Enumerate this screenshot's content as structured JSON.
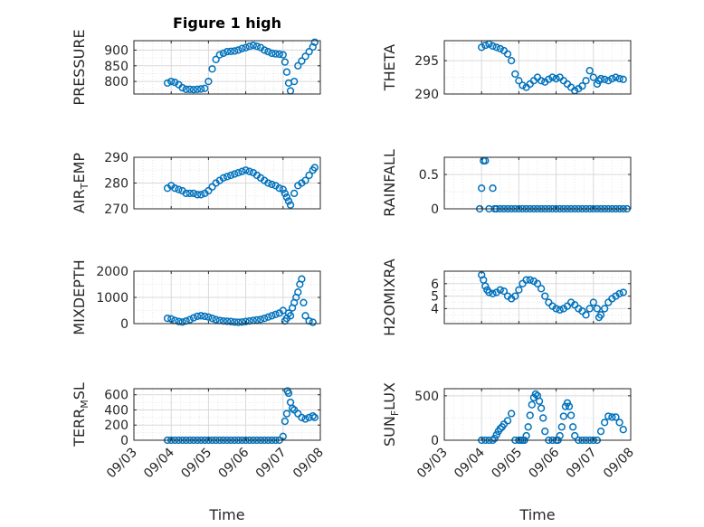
{
  "chart_data": [
    {
      "type": "scatter",
      "title": "Figure 1 high",
      "ylabel": "PRESSURE",
      "ylim": [
        760,
        930
      ],
      "yticks": [
        "800",
        "850",
        "900"
      ],
      "y_tick_values": [
        800,
        850,
        900
      ],
      "x": [
        3.9,
        4.0,
        4.1,
        4.2,
        4.3,
        4.4,
        4.5,
        4.6,
        4.7,
        4.8,
        4.9,
        5.0,
        5.1,
        5.2,
        5.3,
        5.4,
        5.5,
        5.6,
        5.7,
        5.8,
        5.9,
        6.0,
        6.1,
        6.2,
        6.3,
        6.4,
        6.5,
        6.6,
        6.7,
        6.8,
        6.9,
        7.0,
        7.05,
        7.1,
        7.15,
        7.2,
        7.3,
        7.4,
        7.5,
        7.6,
        7.7,
        7.8,
        7.85
      ],
      "values": [
        795,
        800,
        797,
        790,
        780,
        775,
        775,
        774,
        775,
        776,
        778,
        800,
        840,
        870,
        885,
        890,
        895,
        896,
        897,
        900,
        905,
        908,
        912,
        915,
        912,
        908,
        900,
        895,
        890,
        888,
        887,
        885,
        862,
        830,
        795,
        770,
        800,
        850,
        865,
        880,
        895,
        910,
        925
      ]
    },
    {
      "type": "scatter",
      "ylabel": "THETA",
      "ylim": [
        290,
        298
      ],
      "yticks": [
        "290",
        "295"
      ],
      "y_tick_values": [
        290,
        295
      ],
      "x": [
        4.0,
        4.1,
        4.2,
        4.3,
        4.4,
        4.5,
        4.6,
        4.7,
        4.8,
        4.9,
        5.0,
        5.1,
        5.2,
        5.3,
        5.4,
        5.5,
        5.6,
        5.7,
        5.8,
        5.9,
        6.0,
        6.1,
        6.2,
        6.3,
        6.4,
        6.5,
        6.6,
        6.7,
        6.8,
        6.9,
        7.0,
        7.1,
        7.15,
        7.2,
        7.3,
        7.4,
        7.5,
        7.6,
        7.7,
        7.8
      ],
      "values": [
        297.0,
        297.3,
        297.5,
        297.2,
        297.0,
        296.8,
        296.5,
        296.0,
        295.0,
        293.0,
        292.0,
        291.3,
        291.0,
        291.5,
        292.0,
        292.5,
        292.0,
        291.8,
        292.2,
        292.5,
        292.3,
        292.5,
        292.0,
        291.5,
        291.0,
        290.5,
        290.8,
        291.2,
        292.0,
        293.5,
        292.5,
        291.5,
        292.0,
        292.3,
        292.2,
        292.0,
        292.3,
        292.5,
        292.3,
        292.2
      ]
    },
    {
      "type": "scatter",
      "ylabel": "AIR_TEMP",
      "ylim": [
        270,
        290
      ],
      "yticks": [
        "270",
        "280",
        "290"
      ],
      "y_tick_values": [
        270,
        280,
        290
      ],
      "x": [
        3.9,
        4.0,
        4.1,
        4.2,
        4.3,
        4.4,
        4.5,
        4.6,
        4.7,
        4.8,
        4.9,
        5.0,
        5.1,
        5.2,
        5.3,
        5.4,
        5.5,
        5.6,
        5.7,
        5.8,
        5.9,
        6.0,
        6.1,
        6.2,
        6.3,
        6.4,
        6.5,
        6.6,
        6.7,
        6.8,
        6.9,
        7.0,
        7.05,
        7.1,
        7.15,
        7.2,
        7.3,
        7.4,
        7.5,
        7.6,
        7.7,
        7.8,
        7.85
      ],
      "values": [
        278,
        279,
        278,
        277.5,
        277,
        276,
        276,
        276,
        275.5,
        275.5,
        276,
        277,
        278.5,
        280,
        281,
        282,
        282.5,
        283,
        283.5,
        284,
        284.5,
        285,
        284.5,
        284,
        283,
        282,
        281,
        280,
        279.5,
        279,
        278,
        277.5,
        276,
        274.5,
        273,
        271.5,
        276,
        279,
        280,
        281,
        283,
        285,
        286
      ]
    },
    {
      "type": "scatter",
      "ylabel": "RAINFALL",
      "ylim": [
        0,
        0.75
      ],
      "yticks": [
        "0",
        "0.5"
      ],
      "y_tick_values": [
        0,
        0.5
      ],
      "x": [
        3.95,
        4.0,
        4.05,
        4.1,
        4.2,
        4.3,
        4.35,
        4.4,
        4.5,
        4.6,
        4.7,
        4.8,
        4.9,
        5.0,
        5.1,
        5.2,
        5.3,
        5.4,
        5.5,
        5.6,
        5.7,
        5.8,
        5.9,
        6.0,
        6.1,
        6.2,
        6.3,
        6.4,
        6.5,
        6.6,
        6.7,
        6.8,
        6.9,
        7.0,
        7.1,
        7.2,
        7.3,
        7.4,
        7.5,
        7.6,
        7.7,
        7.8,
        7.9
      ],
      "values": [
        0,
        0.3,
        0.7,
        0.7,
        0,
        0.3,
        0,
        0,
        0,
        0,
        0,
        0,
        0,
        0,
        0,
        0,
        0,
        0,
        0,
        0,
        0,
        0,
        0,
        0,
        0,
        0,
        0,
        0,
        0,
        0,
        0,
        0,
        0,
        0,
        0,
        0,
        0,
        0,
        0,
        0,
        0,
        0,
        0
      ]
    },
    {
      "type": "scatter",
      "ylabel": "MIXDEPTH",
      "ylim": [
        0,
        2000
      ],
      "yticks": [
        "0",
        "1000",
        "2000"
      ],
      "y_tick_values": [
        0,
        1000,
        2000
      ],
      "x": [
        3.9,
        4.0,
        4.1,
        4.2,
        4.3,
        4.4,
        4.5,
        4.6,
        4.7,
        4.8,
        4.9,
        5.0,
        5.1,
        5.2,
        5.3,
        5.4,
        5.5,
        5.6,
        5.7,
        5.8,
        5.9,
        6.0,
        6.1,
        6.2,
        6.3,
        6.4,
        6.5,
        6.6,
        6.7,
        6.8,
        6.9,
        7.0,
        7.05,
        7.1,
        7.15,
        7.2,
        7.25,
        7.3,
        7.35,
        7.4,
        7.45,
        7.5,
        7.55,
        7.6,
        7.7,
        7.8
      ],
      "values": [
        200,
        180,
        120,
        80,
        60,
        100,
        150,
        220,
        280,
        300,
        280,
        250,
        200,
        150,
        120,
        100,
        90,
        80,
        60,
        50,
        60,
        80,
        100,
        120,
        140,
        160,
        200,
        250,
        300,
        350,
        400,
        500,
        100,
        200,
        400,
        300,
        600,
        800,
        1000,
        1200,
        1500,
        1700,
        800,
        300,
        100,
        50
      ]
    },
    {
      "type": "scatter",
      "ylabel": "H2OMIXRA",
      "ylim": [
        2.8,
        7
      ],
      "yticks": [
        "4",
        "5",
        "6"
      ],
      "y_tick_values": [
        4,
        5,
        6
      ],
      "x": [
        4.0,
        4.05,
        4.1,
        4.15,
        4.2,
        4.3,
        4.4,
        4.5,
        4.6,
        4.7,
        4.8,
        4.9,
        5.0,
        5.1,
        5.2,
        5.3,
        5.4,
        5.5,
        5.6,
        5.7,
        5.8,
        5.9,
        6.0,
        6.1,
        6.2,
        6.3,
        6.4,
        6.5,
        6.6,
        6.7,
        6.8,
        6.9,
        7.0,
        7.1,
        7.15,
        7.2,
        7.3,
        7.4,
        7.5,
        7.6,
        7.7,
        7.8
      ],
      "values": [
        6.7,
        6.3,
        5.8,
        5.5,
        5.3,
        5.2,
        5.3,
        5.5,
        5.4,
        5.0,
        4.8,
        5.0,
        5.5,
        6.0,
        6.3,
        6.3,
        6.2,
        6.0,
        5.6,
        5.0,
        4.5,
        4.2,
        4.0,
        3.9,
        4.0,
        4.2,
        4.5,
        4.3,
        4.0,
        3.8,
        3.5,
        4.0,
        4.5,
        4.0,
        3.3,
        3.5,
        4.0,
        4.5,
        4.8,
        5.0,
        5.2,
        5.3
      ]
    },
    {
      "type": "scatter",
      "ylabel": "TERR_MSL",
      "ylim": [
        0,
        680
      ],
      "yticks": [
        "0",
        "200",
        "400",
        "600"
      ],
      "y_tick_values": [
        0,
        200,
        400,
        600
      ],
      "x": [
        3.9,
        4.0,
        4.1,
        4.2,
        4.3,
        4.4,
        4.5,
        4.6,
        4.7,
        4.8,
        4.9,
        5.0,
        5.1,
        5.2,
        5.3,
        5.4,
        5.5,
        5.6,
        5.7,
        5.8,
        5.9,
        6.0,
        6.1,
        6.2,
        6.3,
        6.4,
        6.5,
        6.6,
        6.7,
        6.8,
        6.9,
        7.0,
        7.05,
        7.1,
        7.12,
        7.15,
        7.2,
        7.25,
        7.3,
        7.4,
        7.5,
        7.6,
        7.7,
        7.8,
        7.85
      ],
      "values": [
        0,
        0,
        0,
        0,
        0,
        0,
        0,
        0,
        0,
        0,
        0,
        0,
        0,
        0,
        0,
        0,
        0,
        0,
        0,
        0,
        0,
        0,
        0,
        0,
        0,
        0,
        0,
        0,
        0,
        0,
        0,
        50,
        250,
        350,
        650,
        620,
        500,
        420,
        400,
        350,
        300,
        280,
        300,
        320,
        300
      ]
    },
    {
      "type": "scatter",
      "ylabel": "SUN_FLUX",
      "ylim": [
        0,
        580
      ],
      "yticks": [
        "0",
        "500"
      ],
      "y_tick_values": [
        0,
        500
      ],
      "x": [
        4.0,
        4.1,
        4.2,
        4.3,
        4.35,
        4.4,
        4.45,
        4.5,
        4.55,
        4.6,
        4.7,
        4.8,
        4.9,
        5.0,
        5.05,
        5.1,
        5.15,
        5.2,
        5.25,
        5.3,
        5.35,
        5.4,
        5.45,
        5.5,
        5.55,
        5.6,
        5.65,
        5.7,
        5.8,
        5.9,
        6.0,
        6.05,
        6.1,
        6.15,
        6.2,
        6.25,
        6.3,
        6.35,
        6.4,
        6.45,
        6.5,
        6.6,
        6.7,
        6.8,
        6.9,
        7.0,
        7.1,
        7.2,
        7.3,
        7.4,
        7.5,
        7.6,
        7.7,
        7.8
      ],
      "values": [
        0,
        0,
        0,
        0,
        20,
        60,
        100,
        130,
        150,
        180,
        220,
        300,
        0,
        0,
        0,
        0,
        0,
        50,
        150,
        280,
        400,
        480,
        520,
        500,
        440,
        360,
        250,
        100,
        0,
        0,
        0,
        0,
        50,
        150,
        270,
        380,
        420,
        380,
        280,
        150,
        50,
        0,
        0,
        0,
        0,
        0,
        0,
        100,
        200,
        270,
        260,
        260,
        200,
        120
      ]
    }
  ],
  "x_axis": {
    "label": "Time",
    "xlim": [
      3,
      8
    ],
    "ticks": [
      "09/03",
      "09/04",
      "09/05",
      "09/06",
      "09/07",
      "09/08"
    ],
    "tick_values": [
      3,
      4,
      5,
      6,
      7,
      8
    ]
  }
}
